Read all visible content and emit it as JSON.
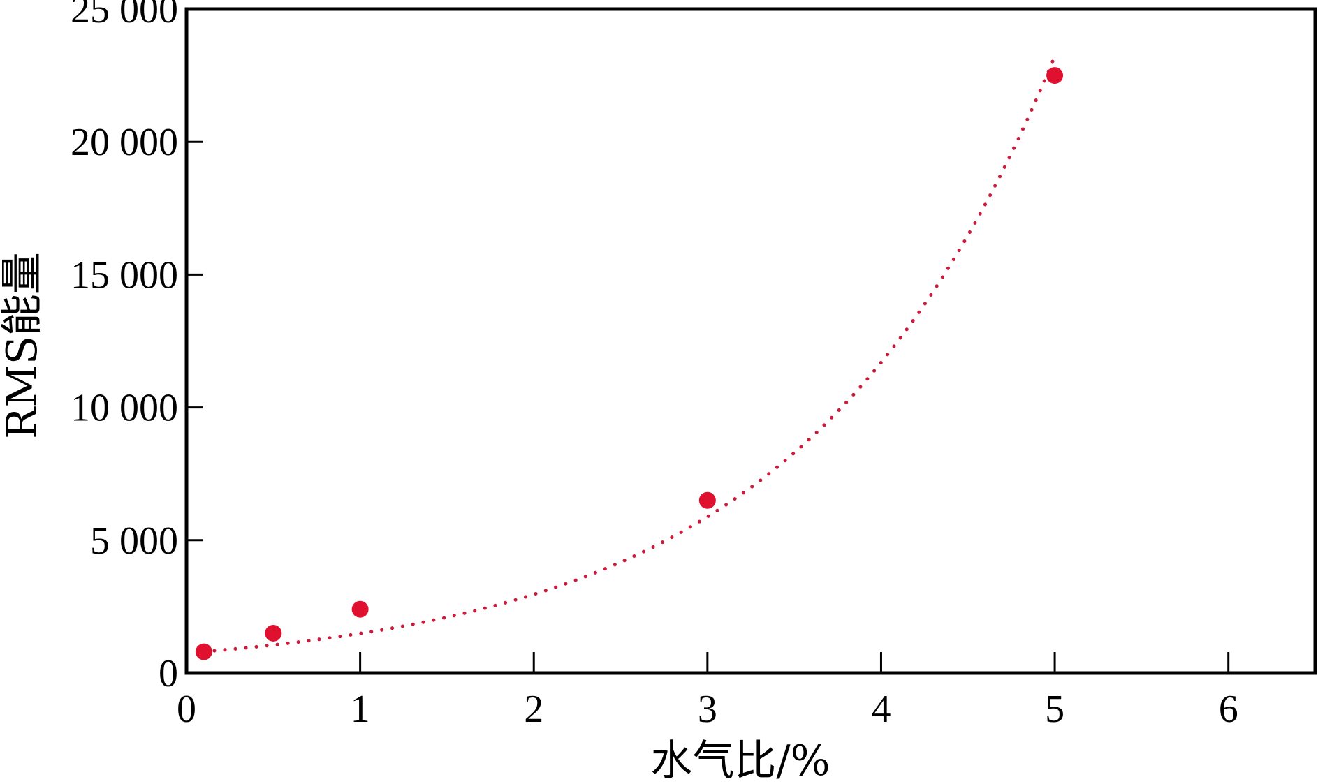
{
  "chart_data": {
    "type": "scatter",
    "xlabel": "水气比/%",
    "ylabel": "RMS能量",
    "xlim": [
      0,
      6.5
    ],
    "ylim": [
      0,
      25000
    ],
    "x_ticks": [
      0,
      1,
      2,
      3,
      4,
      5,
      6
    ],
    "x_tick_labels": [
      "0",
      "1",
      "2",
      "3",
      "4",
      "5",
      "6"
    ],
    "y_ticks": [
      0,
      5000,
      10000,
      15000,
      20000,
      25000
    ],
    "y_tick_labels": [
      "0",
      "5 000",
      "10 000",
      "15 000",
      "20 000",
      "25 000"
    ],
    "grid": false,
    "series": [
      {
        "type": "scatter",
        "color": "#e0102f",
        "x": [
          0.1,
          0.5,
          1.0,
          3.0,
          5.0
        ],
        "y": [
          800,
          1500,
          2400,
          6500,
          22500
        ]
      }
    ],
    "trendline": {
      "type": "exponential",
      "style": "dotted",
      "color": "#cc1a3a",
      "x_range": [
        0.1,
        5.0
      ],
      "a": 750,
      "b": 0.6866
    }
  }
}
